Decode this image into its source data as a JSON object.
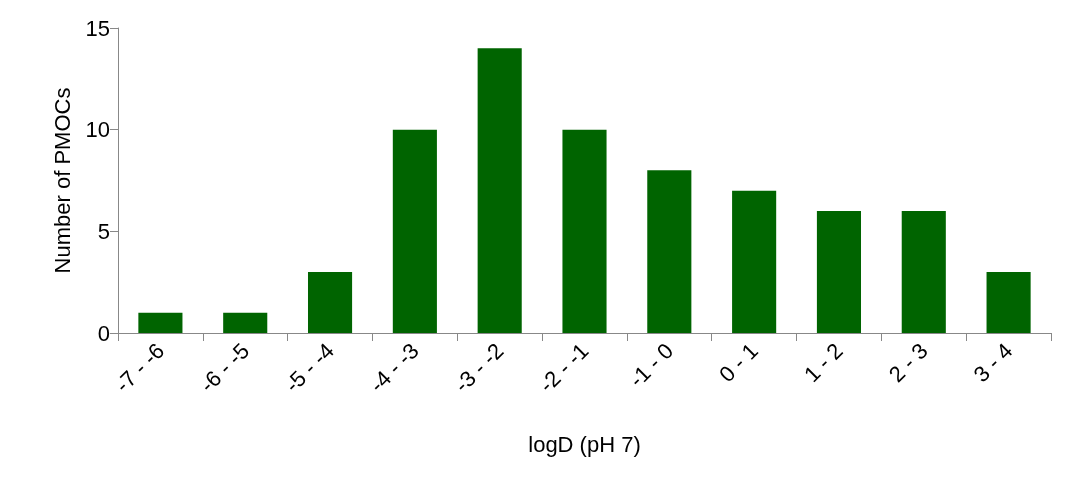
{
  "chart_data": {
    "type": "bar",
    "xlabel": "logD (pH 7)",
    "ylabel": "Number of PMOCs",
    "categories": [
      "-7 - -6",
      "-6 - -5",
      "-5 - -4",
      "-4 - -3",
      "-3 - -2",
      "-2 - -1",
      "-1 - 0",
      "0 - 1",
      "1 - 2",
      "2 - 3",
      "3 - 4"
    ],
    "values": [
      1,
      1,
      3,
      10,
      14,
      10,
      8,
      7,
      6,
      6,
      3
    ],
    "color": "#006400",
    "ylim": [
      0,
      15
    ],
    "yticks": [
      0,
      5,
      10,
      15
    ]
  }
}
